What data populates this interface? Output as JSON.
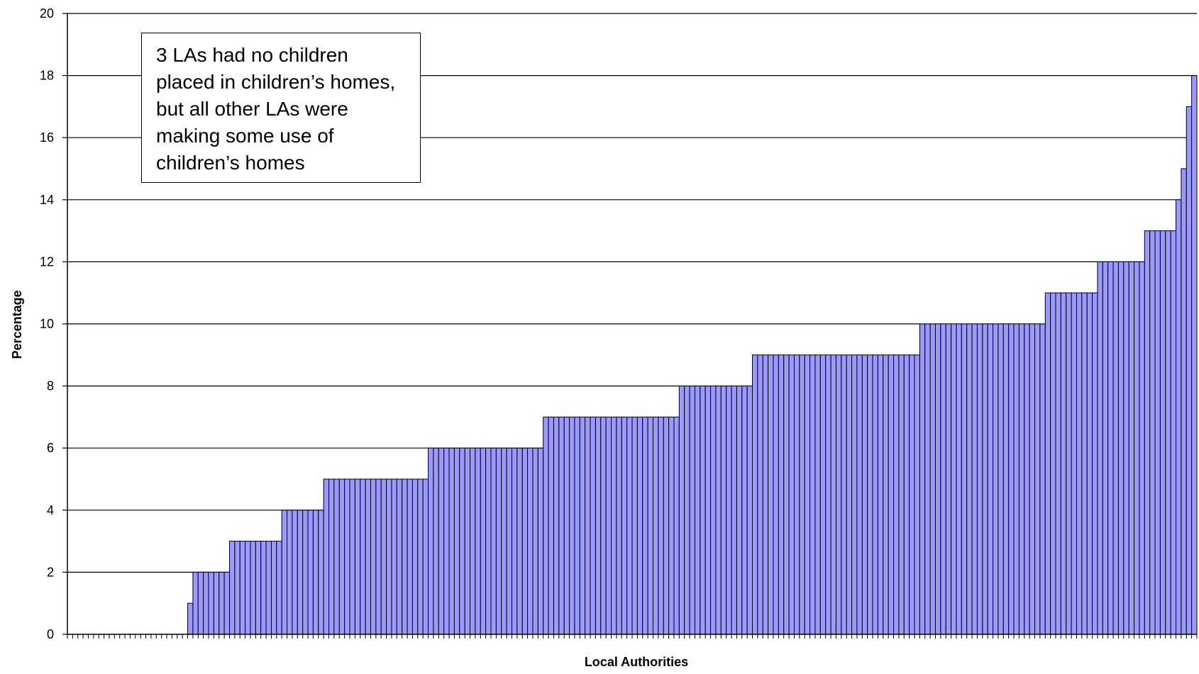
{
  "chart_data": {
    "type": "bar",
    "title": "",
    "xlabel": "Local Authorities",
    "ylabel": "Percentage",
    "ylim": [
      0,
      20
    ],
    "yticks": [
      0,
      2,
      4,
      6,
      8,
      10,
      12,
      14,
      16,
      18,
      20
    ],
    "grid": true,
    "legend": "none",
    "bar_color": "#9999FF",
    "annotation": "3 LAs had no children placed in children’s homes, but all other LAs were making some use of children’s homes",
    "values": [
      0,
      0,
      0,
      0,
      0,
      0,
      0,
      0,
      0,
      0,
      0,
      0,
      0,
      0,
      0,
      0,
      0,
      0,
      0,
      0,
      0,
      0,
      0,
      1,
      2,
      2,
      2,
      2,
      2,
      2,
      2,
      3,
      3,
      3,
      3,
      3,
      3,
      3,
      3,
      3,
      3,
      4,
      4,
      4,
      4,
      4,
      4,
      4,
      4,
      5,
      5,
      5,
      5,
      5,
      5,
      5,
      5,
      5,
      5,
      5,
      5,
      5,
      5,
      5,
      5,
      5,
      5,
      5,
      5,
      6,
      6,
      6,
      6,
      6,
      6,
      6,
      6,
      6,
      6,
      6,
      6,
      6,
      6,
      6,
      6,
      6,
      6,
      6,
      6,
      6,
      6,
      7,
      7,
      7,
      7,
      7,
      7,
      7,
      7,
      7,
      7,
      7,
      7,
      7,
      7,
      7,
      7,
      7,
      7,
      7,
      7,
      7,
      7,
      7,
      7,
      7,
      7,
      8,
      8,
      8,
      8,
      8,
      8,
      8,
      8,
      8,
      8,
      8,
      8,
      8,
      8,
      9,
      9,
      9,
      9,
      9,
      9,
      9,
      9,
      9,
      9,
      9,
      9,
      9,
      9,
      9,
      9,
      9,
      9,
      9,
      9,
      9,
      9,
      9,
      9,
      9,
      9,
      9,
      9,
      9,
      9,
      9,
      9,
      10,
      10,
      10,
      10,
      10,
      10,
      10,
      10,
      10,
      10,
      10,
      10,
      10,
      10,
      10,
      10,
      10,
      10,
      10,
      10,
      10,
      10,
      10,
      10,
      11,
      11,
      11,
      11,
      11,
      11,
      11,
      11,
      11,
      11,
      12,
      12,
      12,
      12,
      12,
      12,
      12,
      12,
      12,
      13,
      13,
      13,
      13,
      13,
      13,
      14,
      15,
      17,
      18
    ]
  }
}
